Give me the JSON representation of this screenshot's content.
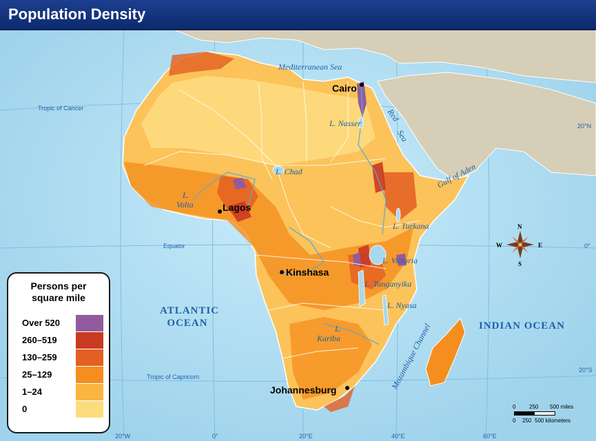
{
  "title": "Population Density",
  "legend": {
    "title_line1": "Persons per",
    "title_line2": "square mile",
    "items": [
      {
        "label": "Over 520",
        "color": "#915c9e"
      },
      {
        "label": "260–519",
        "color": "#c93a22"
      },
      {
        "label": "130–259",
        "color": "#e35f22"
      },
      {
        "label": "25–129",
        "color": "#f58e1f"
      },
      {
        "label": "1–24",
        "color": "#f9b53f"
      },
      {
        "label": "0",
        "color": "#fddc7e"
      }
    ]
  },
  "cities": {
    "cairo": "Cairo",
    "lagos": "Lagos",
    "kinshasa": "Kinshasa",
    "johannesburg": "Johannesburg"
  },
  "water": {
    "mediterranean": "Mediterranean Sea",
    "red_sea_1": "Red",
    "red_sea_2": "Sea",
    "gulf_of_aden": "Gulf of Aden",
    "mozambique_channel": "Mozambique Channel",
    "atlantic_1": "ATLANTIC",
    "atlantic_2": "OCEAN",
    "indian": "INDIAN OCEAN"
  },
  "lakes": {
    "nasser": "L. Nasser",
    "chad": "L. Chad",
    "volta_1": "L.",
    "volta_2": "Volta",
    "turkana": "L. Turkana",
    "victoria": "L. Victoria",
    "tanganyika": "L. Tanganyika",
    "nyasa": "L. Nyasa",
    "kariba_1": "L.",
    "kariba_2": "Kariba"
  },
  "graticule": {
    "tropic_cancer": "Tropic of Cancer",
    "equator": "Equator",
    "tropic_capricorn": "Tropic of Capricorn",
    "lat_20n": "20°N",
    "lat_0": "0°",
    "lat_20s": "20°S",
    "lon_20w": "20°W",
    "lon_0": "0°",
    "lon_20e": "20°E",
    "lon_40e": "40°E",
    "lon_60e": "60°E"
  },
  "compass": {
    "n": "N",
    "s": "S",
    "e": "E",
    "w": "W"
  },
  "scale": {
    "mi_0": "0",
    "mi_250": "250",
    "mi_500": "500 miles",
    "km_0": "0",
    "km_250": "250",
    "km_500": "500 kilometers"
  },
  "colors": {
    "ocean": "#a8d8ee",
    "land_other": "#d6ceb6",
    "title_bar": "#0d2a6e",
    "water_text": "#1f5fa8"
  }
}
